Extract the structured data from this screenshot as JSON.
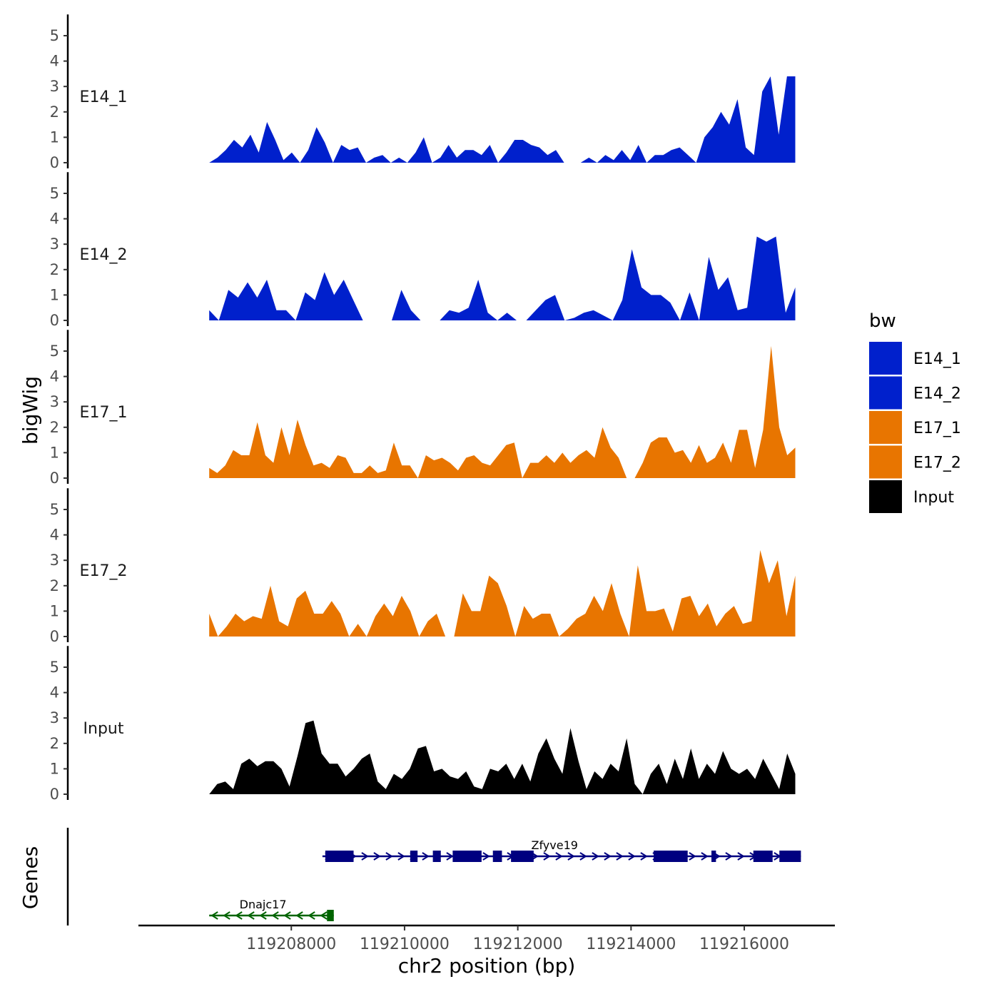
{
  "chart_data": {
    "type": "area",
    "ylabel": "bigWig",
    "xlabel": "chr2 position (bp)",
    "x_ticks": [
      119208000,
      119210000,
      119212000,
      119214000,
      119216000
    ],
    "x_tick_labels": [
      "119208000",
      "119210000",
      "119212000",
      "119214000",
      "119216000"
    ],
    "xlim": [
      119205300,
      119217600
    ],
    "data_xlim": [
      119206550,
      119216900
    ],
    "ylim": [
      0,
      5.5
    ],
    "y_ticks": [
      0,
      1,
      2,
      3,
      4,
      5
    ],
    "y_tick_labels": [
      "0",
      "1",
      "2",
      "3",
      "4",
      "5"
    ],
    "tracks": [
      {
        "name": "E14_1",
        "color": "#0020CC",
        "values": [
          0,
          0.2,
          0.5,
          0.9,
          0.6,
          1.1,
          0.4,
          1.6,
          0.9,
          0.1,
          0.4,
          0,
          0.5,
          1.4,
          0.8,
          0,
          0.7,
          0.5,
          0.6,
          0,
          0.2,
          0.3,
          0,
          0.2,
          0,
          0.4,
          1.0,
          0,
          0.2,
          0.7,
          0.2,
          0.5,
          0.5,
          0.3,
          0.7,
          0,
          0.4,
          0.9,
          0.9,
          0.7,
          0.6,
          0.3,
          0.5,
          0,
          0,
          0,
          0.2,
          0,
          0.3,
          0.1,
          0.5,
          0.1,
          0.7,
          0,
          0.3,
          0.3,
          0.5,
          0.6,
          0.3,
          0,
          1.0,
          1.4,
          2.0,
          1.5,
          2.5,
          0.6,
          0.3,
          2.8,
          3.4,
          1.1,
          3.4,
          3.4
        ]
      },
      {
        "name": "E14_2",
        "color": "#0020CC",
        "values": [
          0.4,
          0,
          1.2,
          0.9,
          1.5,
          0.9,
          1.6,
          0.4,
          0.4,
          0,
          1.1,
          0.8,
          1.9,
          1.0,
          1.6,
          0.8,
          0,
          0,
          0,
          0,
          1.2,
          0.4,
          0,
          0,
          0,
          0.4,
          0.3,
          0.5,
          1.6,
          0.3,
          0,
          0.3,
          0,
          0,
          0.4,
          0.8,
          1.0,
          0,
          0.1,
          0.3,
          0.4,
          0.2,
          0,
          0.8,
          2.8,
          1.3,
          1.0,
          1.0,
          0.7,
          0,
          1.1,
          0,
          2.5,
          1.2,
          1.7,
          0.4,
          0.5,
          3.3,
          3.1,
          3.3,
          0.3,
          1.3
        ]
      },
      {
        "name": "E17_1",
        "color": "#E87500",
        "values": [
          0.4,
          0.2,
          0.5,
          1.1,
          0.9,
          0.9,
          2.2,
          0.9,
          0.6,
          2.0,
          0.9,
          2.3,
          1.3,
          0.5,
          0.6,
          0.4,
          0.9,
          0.8,
          0.2,
          0.2,
          0.5,
          0.2,
          0.3,
          1.4,
          0.5,
          0.5,
          0,
          0.9,
          0.7,
          0.8,
          0.6,
          0.3,
          0.8,
          0.9,
          0.6,
          0.5,
          0.9,
          1.3,
          1.4,
          0,
          0.6,
          0.6,
          0.9,
          0.6,
          1.0,
          0.6,
          0.9,
          1.1,
          0.8,
          2.0,
          1.2,
          0.8,
          0,
          0,
          0.6,
          1.4,
          1.6,
          1.6,
          1.0,
          1.1,
          0.6,
          1.3,
          0.6,
          0.8,
          1.4,
          0.6,
          1.9,
          1.9,
          0.4,
          1.9,
          5.2,
          2.0,
          0.9,
          1.2
        ]
      },
      {
        "name": "E17_2",
        "color": "#E87500",
        "values": [
          0.9,
          0,
          0.4,
          0.9,
          0.6,
          0.8,
          0.7,
          2.0,
          0.6,
          0.4,
          1.5,
          1.8,
          0.9,
          0.9,
          1.4,
          0.9,
          0,
          0.5,
          0,
          0.8,
          1.3,
          0.8,
          1.6,
          1.0,
          0,
          0.6,
          0.9,
          0,
          0,
          1.7,
          1.0,
          1.0,
          2.4,
          2.1,
          1.2,
          0,
          1.2,
          0.7,
          0.9,
          0.9,
          0,
          0.3,
          0.7,
          0.9,
          1.6,
          1.0,
          2.1,
          0.9,
          0,
          2.8,
          1.0,
          1.0,
          1.1,
          0.2,
          1.5,
          1.6,
          0.8,
          1.3,
          0.4,
          0.9,
          1.2,
          0.5,
          0.6,
          3.4,
          2.1,
          3.0,
          0.8,
          2.4
        ]
      },
      {
        "name": "Input",
        "color": "#000000",
        "values": [
          0,
          0.4,
          0.5,
          0.2,
          1.2,
          1.4,
          1.1,
          1.3,
          1.3,
          1.0,
          0.3,
          1.5,
          2.8,
          2.9,
          1.6,
          1.2,
          1.2,
          0.7,
          1.0,
          1.4,
          1.6,
          0.5,
          0.2,
          0.8,
          0.6,
          1.0,
          1.8,
          1.9,
          0.9,
          1.0,
          0.7,
          0.6,
          0.9,
          0.3,
          0.2,
          1.0,
          0.9,
          1.2,
          0.6,
          1.2,
          0.5,
          1.6,
          2.2,
          1.4,
          0.8,
          2.6,
          1.3,
          0.2,
          0.9,
          0.6,
          1.2,
          0.9,
          2.2,
          0.4,
          0,
          0.8,
          1.2,
          0.4,
          1.4,
          0.6,
          1.8,
          0.6,
          1.2,
          0.8,
          1.7,
          1.0,
          0.8,
          1.0,
          0.6,
          1.4,
          0.8,
          0.2,
          1.6,
          0.8
        ]
      }
    ],
    "genes": [
      {
        "name": "Zfyve19",
        "strand": "+",
        "color": "#000080",
        "start": 119208550,
        "end": 119217000,
        "exons": [
          [
            119208600,
            119209100
          ],
          [
            119210100,
            119210230
          ],
          [
            119210500,
            119210640
          ],
          [
            119210850,
            119211360
          ],
          [
            119211560,
            119211720
          ],
          [
            119211880,
            119212280
          ],
          [
            119214400,
            119215000
          ],
          [
            119215420,
            119215500
          ],
          [
            119216160,
            119216500
          ],
          [
            119216620,
            119217000
          ]
        ]
      },
      {
        "name": "Dnajc17",
        "strand": "-",
        "color": "#006400",
        "start": 119206550,
        "end": 119208750,
        "exons": [
          [
            119208630,
            119208750
          ]
        ]
      }
    ],
    "legend": {
      "title": "bw",
      "entries": [
        {
          "label": "E14_1",
          "color": "#0020CC"
        },
        {
          "label": "E14_2",
          "color": "#0020CC"
        },
        {
          "label": "E17_1",
          "color": "#E87500"
        },
        {
          "label": "E17_2",
          "color": "#E87500"
        },
        {
          "label": "Input",
          "color": "#000000"
        }
      ]
    },
    "gene_panel_label": "Genes"
  }
}
